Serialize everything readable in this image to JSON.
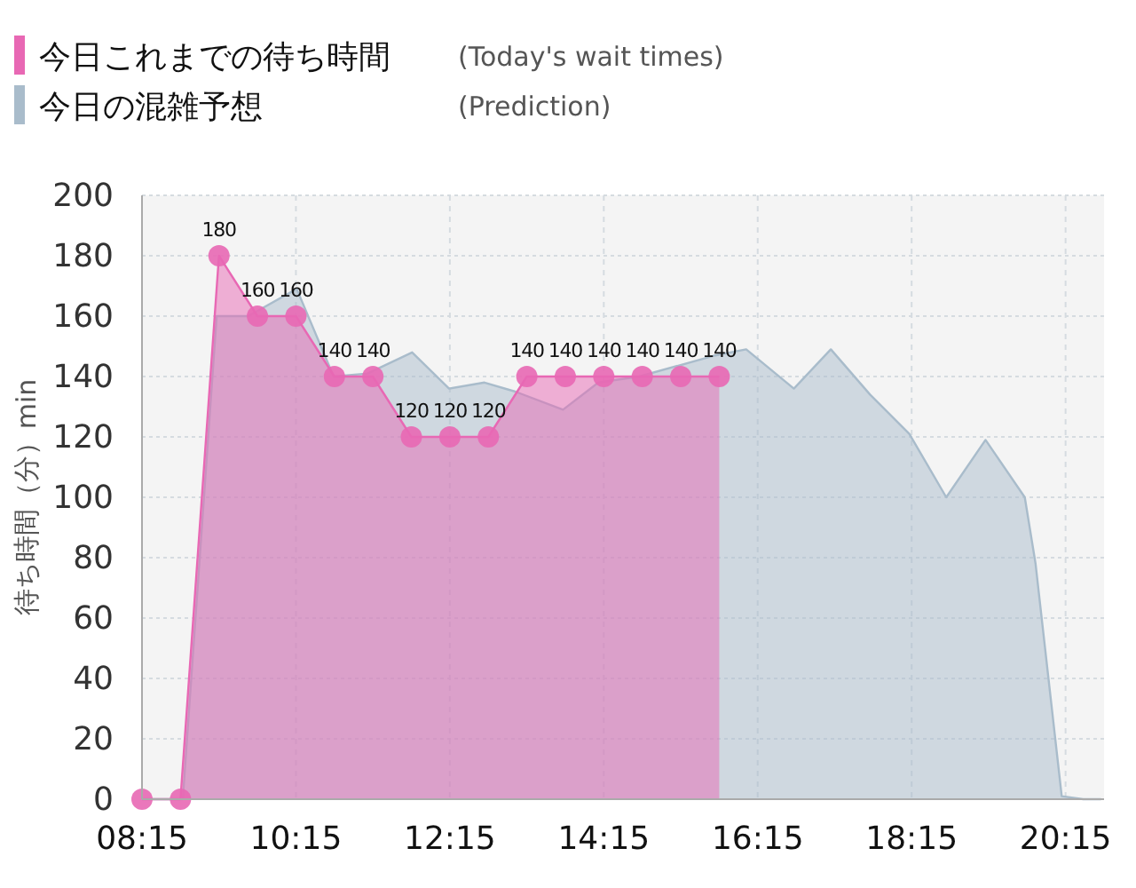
{
  "chart_data": {
    "type": "area",
    "ylabel": "待ち時間（分）min",
    "legend": "top left",
    "grid": true,
    "xlim": [
      8.25,
      20.75
    ],
    "xticks": [
      {
        "value": 8.25,
        "label": "08:15"
      },
      {
        "value": 10.25,
        "label": "10:15"
      },
      {
        "value": 12.25,
        "label": "12:15"
      },
      {
        "value": 14.25,
        "label": "14:15"
      },
      {
        "value": 16.25,
        "label": "16:15"
      },
      {
        "value": 18.25,
        "label": "18:15"
      },
      {
        "value": 20.25,
        "label": "20:15"
      }
    ],
    "ylim": [
      0,
      200
    ],
    "yticks": [
      0,
      20,
      40,
      60,
      80,
      100,
      120,
      140,
      160,
      180,
      200
    ],
    "annotations": [
      "(Today's wait times)",
      "(Prediction)"
    ],
    "series": [
      {
        "name": "今日これまでの待ち時間",
        "color": "#e868b4",
        "marker": "circle",
        "x": [
          8.25,
          8.75,
          9.25,
          9.75,
          10.25,
          10.75,
          11.25,
          11.75,
          12.25,
          12.75,
          13.25,
          13.75,
          14.25,
          14.75,
          15.25,
          15.75
        ],
        "values": [
          0,
          0,
          180,
          160,
          160,
          140,
          140,
          120,
          120,
          120,
          140,
          140,
          140,
          140,
          140,
          140
        ],
        "value_labels": [
          null,
          null,
          "180",
          "160",
          "160",
          "140",
          "140",
          "120",
          "120",
          "120",
          "140",
          "140",
          "140",
          "140",
          "140",
          "140"
        ]
      },
      {
        "name": "今日の混雑予想",
        "color": "#a9bccb",
        "x": [
          8.25,
          8.78,
          9.22,
          9.63,
          10.26,
          10.74,
          11.18,
          11.76,
          12.24,
          12.7,
          13.1,
          13.72,
          14.18,
          14.71,
          15.7,
          16.1,
          16.72,
          17.2,
          17.71,
          18.22,
          18.7,
          19.21,
          19.72,
          19.86,
          20.2,
          20.48,
          20.71
        ],
        "values": [
          0,
          0,
          160,
          160,
          169,
          140,
          141,
          148,
          136,
          138,
          135,
          129,
          138,
          140,
          147,
          149,
          136,
          149,
          134,
          121,
          100,
          119,
          100,
          78,
          1,
          0,
          0
        ]
      }
    ]
  }
}
